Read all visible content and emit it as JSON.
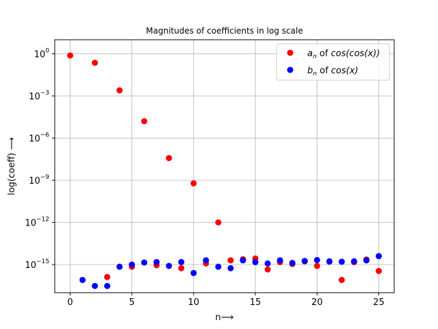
{
  "chart_data": {
    "type": "scatter",
    "title": "Magnitudes of coefficients in log scale",
    "xlabel": "n⟶",
    "ylabel": "log(coeff) ⟶",
    "xlim": [
      -1.25,
      26.25
    ],
    "ylim": [
      1e-17,
      10.0
    ],
    "yscale": "log",
    "grid": true,
    "legend_position": "top-right",
    "x_ticks": [
      0,
      5,
      10,
      15,
      20,
      25
    ],
    "x_tick_labels": [
      "0",
      "5",
      "10",
      "15",
      "20",
      "25"
    ],
    "y_ticks": [
      1e-15,
      1e-12,
      1e-09,
      1e-06,
      0.001,
      1
    ],
    "y_tick_labels": [
      "10",
      "10",
      "10",
      "10",
      "10",
      "10"
    ],
    "y_tick_exponents": [
      "−15",
      "−12",
      "−9",
      "−6",
      "−3",
      "0"
    ],
    "series": [
      {
        "name_main": "a",
        "name_sub": "n",
        "name_rest": " of ",
        "name_italic": "cos(cos(x))",
        "color": "#ff0000",
        "x": [
          0,
          2,
          3,
          4,
          5,
          6,
          7,
          8,
          9,
          10,
          11,
          12,
          13,
          14,
          15,
          16,
          17,
          18,
          19,
          20,
          21,
          22,
          23,
          24,
          25
        ],
        "y": [
          0.76,
          0.23,
          1.3e-16,
          0.0025,
          7e-16,
          1.6e-05,
          9e-16,
          3.8e-08,
          5.5e-16,
          6e-10,
          1.2e-15,
          1e-12,
          2e-15,
          2.4e-15,
          2.7e-15,
          4.5e-16,
          1.5e-15,
          1.1e-15,
          1.7e-15,
          8e-16,
          1.6e-15,
          8e-17,
          1.5e-15,
          2.3e-15,
          3.5e-16
        ]
      },
      {
        "name_main": "b",
        "name_sub": "n",
        "name_rest": " of ",
        "name_italic": "cos(x)",
        "color": "#0000ff",
        "x": [
          1,
          2,
          3,
          4,
          5,
          6,
          7,
          8,
          9,
          10,
          11,
          12,
          13,
          14,
          15,
          16,
          17,
          18,
          19,
          20,
          21,
          22,
          23,
          24,
          25
        ],
        "y": [
          8e-17,
          3e-17,
          3e-17,
          7e-16,
          1e-15,
          1.4e-15,
          1.5e-15,
          8e-16,
          1.5e-15,
          2.5e-16,
          2e-15,
          7e-16,
          5.5e-16,
          2e-15,
          1.5e-15,
          1.2e-15,
          2e-15,
          1.3e-15,
          1.8e-15,
          2.1e-15,
          1.7e-15,
          1.6e-15,
          1.7e-15,
          2e-15,
          4e-15
        ]
      }
    ]
  }
}
